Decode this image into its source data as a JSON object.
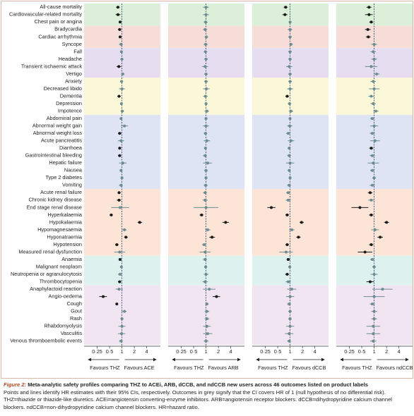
{
  "chart_data": {
    "type": "forest",
    "log_scale": true,
    "xlim": [
      0.12,
      8.6
    ],
    "xticks": [
      {
        "value": 0.25,
        "label": "0·25"
      },
      {
        "value": 0.5,
        "label": "0·5"
      },
      1,
      2,
      4
    ],
    "colors": {
      "significant": "#1b1b1b",
      "null": "#6b8d92",
      "reference": "#2b3a66"
    },
    "categories": [
      "All-cause mortality",
      "Cardiovascular-related mortality",
      "Chest pain or angina",
      "Bradycardia",
      "Cardiac arrhythmia",
      "Syncope",
      "Fall",
      "Headache",
      "Transient ischaemic attack",
      "Vertigo",
      "Anxiety",
      "Decreased libido",
      "Dementia",
      "Depression",
      "Impotence",
      "Abdominal pain",
      "Abnormal weight gain",
      "Abnormal weight loss",
      "Acute pancreatitis",
      "Diarrhoea",
      "Gastrointestinal bleeding",
      "Hepatic failure",
      "Nausea",
      "Type 2 diabetes",
      "Vomiting",
      "Acute renal failure",
      "Chronic kidney disease",
      "End stage renal disease",
      "Hyperkalaemia",
      "Hypokalaemia",
      "Hypomagnesaemia",
      "Hyponatraemia",
      "Hypotension",
      "Measured renal dysfunction",
      "Anaemia",
      "Malignant neoplasm",
      "Neutropenia or agranulocytosis",
      "Thrombocytopenia",
      "Anaphylactoid reaction",
      "Angio-oedema",
      "Cough",
      "Gout",
      "Rash",
      "Rhabdomyolysis",
      "Vasculitis",
      "Venous thromboembolic events"
    ],
    "series": [
      {
        "xlabel_left": "Favours THZ",
        "xlabel_right": "Favours ACE",
        "values": [
          0.8,
          0.8,
          0.9,
          0.88,
          0.9,
          0.95,
          0.97,
          1.0,
          0.84,
          1.05,
          0.98,
          1.0,
          0.85,
          0.97,
          1.02,
          0.95,
          1.15,
          0.88,
          0.95,
          0.88,
          0.88,
          1.05,
          0.95,
          1.0,
          0.95,
          0.85,
          0.85,
          0.9,
          0.55,
          2.7,
          1.15,
          1.25,
          0.75,
          0.88,
          0.9,
          0.97,
          0.9,
          0.88,
          0.85,
          0.35,
          0.75,
          1.15,
          1.0,
          1.0,
          0.98,
          0.95
        ],
        "lower": [
          0.72,
          0.7,
          0.85,
          0.8,
          0.85,
          0.85,
          0.9,
          0.92,
          0.74,
          0.95,
          0.9,
          0.85,
          0.77,
          0.9,
          0.93,
          0.9,
          0.95,
          0.8,
          0.8,
          0.82,
          0.8,
          0.85,
          0.88,
          0.95,
          0.85,
          0.78,
          0.75,
          0.55,
          0.5,
          2.4,
          1.0,
          1.13,
          0.68,
          0.65,
          0.83,
          0.9,
          0.8,
          0.8,
          0.7,
          0.28,
          0.7,
          0.98,
          0.92,
          0.82,
          0.8,
          0.85
        ],
        "upper": [
          0.88,
          0.92,
          0.96,
          0.96,
          0.96,
          1.06,
          1.05,
          1.08,
          0.96,
          1.15,
          1.07,
          1.18,
          0.94,
          1.05,
          1.12,
          1.0,
          1.4,
          0.97,
          1.13,
          0.95,
          0.96,
          1.3,
          1.02,
          1.05,
          1.05,
          0.93,
          0.95,
          1.5,
          0.6,
          3.1,
          1.3,
          1.38,
          0.83,
          1.2,
          0.97,
          1.05,
          1.0,
          0.96,
          1.05,
          0.43,
          0.8,
          1.3,
          1.08,
          1.22,
          1.2,
          1.06
        ]
      },
      {
        "xlabel_left": "Favours THZ",
        "xlabel_right": "Favours ARB",
        "values": [
          1.0,
          1.0,
          0.98,
          0.95,
          1.02,
          0.98,
          0.97,
          1.0,
          0.95,
          1.0,
          1.0,
          1.02,
          0.97,
          1.0,
          1.05,
          1.0,
          1.0,
          0.97,
          1.05,
          0.97,
          0.95,
          1.1,
          1.0,
          1.0,
          0.98,
          0.95,
          0.95,
          1.0,
          0.78,
          3.0,
          1.1,
          1.4,
          0.9,
          0.95,
          0.95,
          0.98,
          1.0,
          0.95,
          1.2,
          1.8,
          1.05,
          1.05,
          1.05,
          1.05,
          1.1,
          1.0
        ],
        "lower": [
          0.85,
          0.85,
          0.88,
          0.85,
          0.92,
          0.88,
          0.88,
          0.9,
          0.8,
          0.9,
          0.9,
          0.85,
          0.85,
          0.92,
          0.92,
          0.92,
          0.85,
          0.88,
          0.88,
          0.9,
          0.85,
          0.85,
          0.9,
          0.93,
          0.88,
          0.85,
          0.82,
          0.5,
          0.7,
          2.5,
          0.95,
          1.2,
          0.8,
          0.7,
          0.85,
          0.9,
          0.88,
          0.82,
          0.85,
          1.45,
          0.95,
          0.92,
          0.92,
          0.85,
          0.85,
          0.88
        ],
        "upper": [
          1.17,
          1.18,
          1.1,
          1.07,
          1.12,
          1.1,
          1.07,
          1.1,
          1.12,
          1.1,
          1.1,
          1.22,
          1.1,
          1.08,
          1.18,
          1.08,
          1.18,
          1.07,
          1.25,
          1.05,
          1.06,
          1.4,
          1.1,
          1.07,
          1.1,
          1.06,
          1.1,
          2.0,
          0.87,
          3.6,
          1.28,
          1.65,
          1.0,
          1.3,
          1.06,
          1.07,
          1.14,
          1.1,
          1.7,
          2.2,
          1.15,
          1.2,
          1.2,
          1.3,
          1.42,
          1.14
        ]
      },
      {
        "xlabel_left": "Favours THZ",
        "xlabel_right": "Favours dCCB",
        "values": [
          0.78,
          0.75,
          1.0,
          1.0,
          1.0,
          1.05,
          1.0,
          1.0,
          0.95,
          1.0,
          1.0,
          1.0,
          0.85,
          0.97,
          1.05,
          1.0,
          0.98,
          0.9,
          1.05,
          0.95,
          0.95,
          1.0,
          0.95,
          1.0,
          0.95,
          0.9,
          0.9,
          0.35,
          0.85,
          1.9,
          1.1,
          1.6,
          0.85,
          0.8,
          0.9,
          0.98,
          0.85,
          0.9,
          1.1,
          1.0,
          0.95,
          1.0,
          1.0,
          1.0,
          0.95,
          0.95
        ],
        "lower": [
          0.7,
          0.65,
          0.92,
          0.88,
          0.9,
          0.95,
          0.9,
          0.9,
          0.8,
          0.9,
          0.9,
          0.85,
          0.77,
          0.88,
          0.93,
          0.92,
          0.85,
          0.8,
          0.88,
          0.87,
          0.85,
          0.8,
          0.87,
          0.93,
          0.85,
          0.8,
          0.78,
          0.28,
          0.77,
          1.7,
          0.95,
          1.42,
          0.77,
          0.55,
          0.82,
          0.9,
          0.76,
          0.78,
          0.85,
          0.8,
          0.85,
          0.9,
          0.9,
          0.8,
          0.75,
          0.85
        ],
        "upper": [
          0.87,
          0.86,
          1.09,
          1.13,
          1.1,
          1.16,
          1.1,
          1.1,
          1.13,
          1.1,
          1.1,
          1.18,
          0.94,
          1.07,
          1.18,
          1.08,
          1.13,
          1.01,
          1.25,
          1.04,
          1.06,
          1.25,
          1.04,
          1.07,
          1.06,
          1.01,
          1.04,
          0.44,
          0.94,
          2.15,
          1.28,
          1.8,
          0.94,
          1.15,
          0.99,
          1.07,
          0.95,
          1.04,
          1.42,
          1.25,
          1.06,
          1.1,
          1.1,
          1.25,
          1.2,
          1.06
        ]
      },
      {
        "xlabel_left": "Favours THZ",
        "xlabel_right": "Favours ndCCB",
        "values": [
          0.75,
          0.75,
          0.85,
          0.7,
          0.72,
          1.0,
          0.95,
          1.0,
          0.85,
          1.15,
          0.95,
          1.0,
          0.85,
          0.95,
          1.1,
          0.9,
          1.0,
          0.9,
          1.05,
          0.85,
          0.9,
          0.95,
          0.9,
          1.0,
          0.9,
          0.8,
          0.85,
          0.45,
          0.85,
          2.0,
          1.05,
          1.4,
          0.85,
          0.6,
          0.9,
          1.0,
          1.0,
          0.8,
          1.6,
          1.0,
          0.9,
          1.0,
          1.0,
          0.95,
          0.95,
          0.95
        ],
        "lower": [
          0.65,
          0.6,
          0.76,
          0.6,
          0.63,
          0.85,
          0.82,
          0.85,
          0.6,
          0.98,
          0.82,
          0.75,
          0.72,
          0.82,
          0.95,
          0.8,
          0.8,
          0.78,
          0.8,
          0.76,
          0.78,
          0.7,
          0.8,
          0.9,
          0.78,
          0.7,
          0.72,
          0.28,
          0.75,
          1.75,
          0.85,
          1.2,
          0.75,
          0.4,
          0.8,
          0.9,
          0.82,
          0.65,
          0.9,
          0.55,
          0.78,
          0.85,
          0.85,
          0.65,
          0.65,
          0.8
        ],
        "upper": [
          0.86,
          0.92,
          0.95,
          0.82,
          0.82,
          1.18,
          1.1,
          1.18,
          1.2,
          1.35,
          1.1,
          1.35,
          1.0,
          1.1,
          1.28,
          1.01,
          1.25,
          1.04,
          1.38,
          0.95,
          1.04,
          1.3,
          1.01,
          1.1,
          1.04,
          0.91,
          1.0,
          0.72,
          0.96,
          2.3,
          1.3,
          1.63,
          0.96,
          0.9,
          1.01,
          1.1,
          1.22,
          0.98,
          2.8,
          1.8,
          1.04,
          1.18,
          1.18,
          1.4,
          1.4,
          1.13
        ]
      }
    ]
  },
  "caption": {
    "figure_label": "Figure 2:",
    "title": "Meta-analytic safety profiles comparing THZ to ACEi, ARB, dCCB, and ndCCB new users across 46 outcomes listed on product labels",
    "text": "Points and lines identify HR estimates with their 95% CIs, respectively. Outcomes in grey signify that the CI covers HR of 1 (null hypothesis of no differential risk). THZ=thiazide or thiazide-like diuretics. ACEi=angiotensin converting-enzyme inhibitors. ARB=angiotensin receptor blockers. dCCB=dihydropyridine calcium channel blockers. ndCCB=non-dihydropyridine calcium channel blockers. HR=hazard ratio."
  }
}
